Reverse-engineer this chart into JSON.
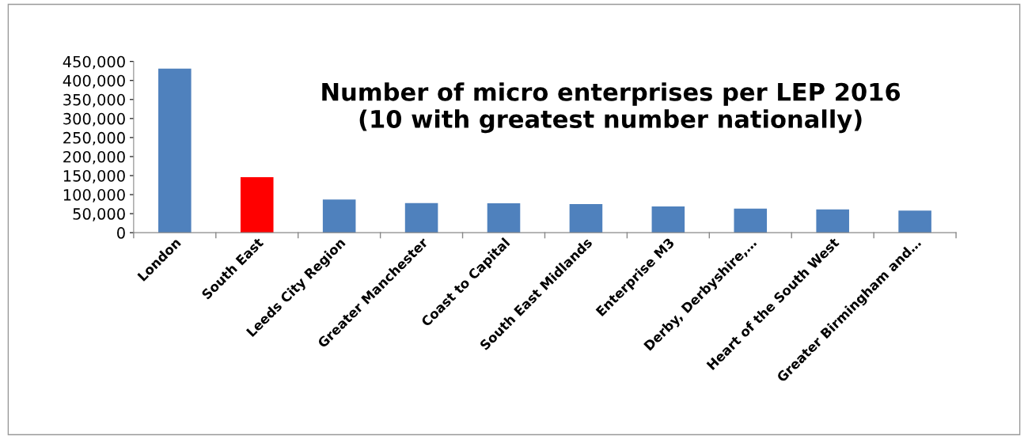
{
  "chart_data": {
    "type": "bar",
    "title": "Number of micro enterprises per LEP 2016\n(10 with greatest number nationally)",
    "categories": [
      "London",
      "South East",
      "Leeds City Region",
      "Greater Manchester",
      "Coast to Capital",
      "South East Midlands",
      "Enterprise M3",
      "Derby, Derbyshire,…",
      "Heart of the South West",
      "Greater Birmingham and…"
    ],
    "values": [
      431000,
      146000,
      87000,
      78000,
      77000,
      75000,
      69000,
      63000,
      61000,
      58000
    ],
    "colors": [
      "#4f81bd",
      "#ff0000",
      "#4f81bd",
      "#4f81bd",
      "#4f81bd",
      "#4f81bd",
      "#4f81bd",
      "#4f81bd",
      "#4f81bd",
      "#4f81bd"
    ],
    "ylim": [
      0,
      450000
    ],
    "yticks": [
      {
        "value": 0,
        "label": "0"
      },
      {
        "value": 50000,
        "label": "50,000"
      },
      {
        "value": 100000,
        "label": "100,000"
      },
      {
        "value": 150000,
        "label": "150,000"
      },
      {
        "value": 200000,
        "label": "200,000"
      },
      {
        "value": 250000,
        "label": "250,000"
      },
      {
        "value": 300000,
        "label": "300,000"
      },
      {
        "value": 350000,
        "label": "350,000"
      },
      {
        "value": 400000,
        "label": "400,000"
      },
      {
        "value": 450000,
        "label": "450,000"
      }
    ],
    "grid": false,
    "legend": false
  }
}
